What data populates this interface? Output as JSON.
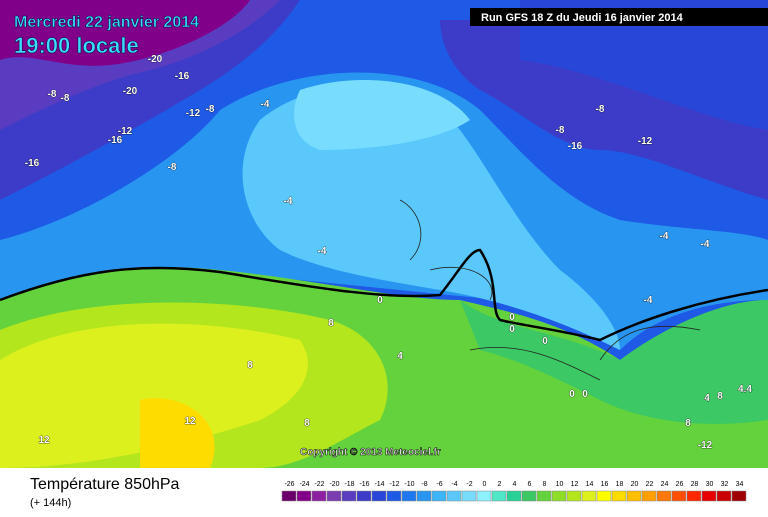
{
  "header": {
    "date": "Mercredi 22 janvier 2014",
    "time": "19:00 locale",
    "run": "Run GFS 18 Z du Jeudi 16 janvier 2014"
  },
  "map": {
    "copyright": "Copyright © 2013 Meteociel.fr",
    "labels": [
      "-20",
      "-16",
      "-20",
      "-8",
      "-8",
      "-12",
      "-8",
      "-4",
      "-12",
      "-16",
      "-16",
      "-8",
      "-4",
      "-4",
      "0",
      "8",
      "8",
      "4",
      "0",
      "0",
      "0",
      "12",
      "8",
      "12",
      "-8",
      "-8",
      "-16",
      "-12",
      "-4",
      "-4",
      "-4",
      "0",
      "0",
      "4",
      "8",
      "4.4",
      "8",
      "-12"
    ]
  },
  "legend": {
    "title": "Température 850hPa",
    "subtitle": "(+ 144h)",
    "ticks": [
      -26,
      -24,
      -22,
      -20,
      -18,
      -16,
      -14,
      -12,
      -10,
      -8,
      -6,
      -4,
      -2,
      0,
      2,
      4,
      6,
      8,
      10,
      12,
      14,
      16,
      18,
      20,
      22,
      24,
      26,
      28,
      30,
      32,
      34
    ],
    "colors": [
      "#6a006a",
      "#80008a",
      "#8c20a0",
      "#7a3cb0",
      "#5a3cc0",
      "#3c3cc8",
      "#2846d8",
      "#1e5ae6",
      "#1e78f0",
      "#2896f0",
      "#3cb4f5",
      "#5ac8fa",
      "#78dcff",
      "#8cf0ff",
      "#50e6c8",
      "#28d296",
      "#3cc864",
      "#64d23c",
      "#8cdc28",
      "#b4e61e",
      "#dcf01e",
      "#ffff00",
      "#ffdc00",
      "#ffbe00",
      "#ffa000",
      "#ff7800",
      "#ff5000",
      "#ff2800",
      "#e60000",
      "#c80000",
      "#a00000"
    ]
  }
}
